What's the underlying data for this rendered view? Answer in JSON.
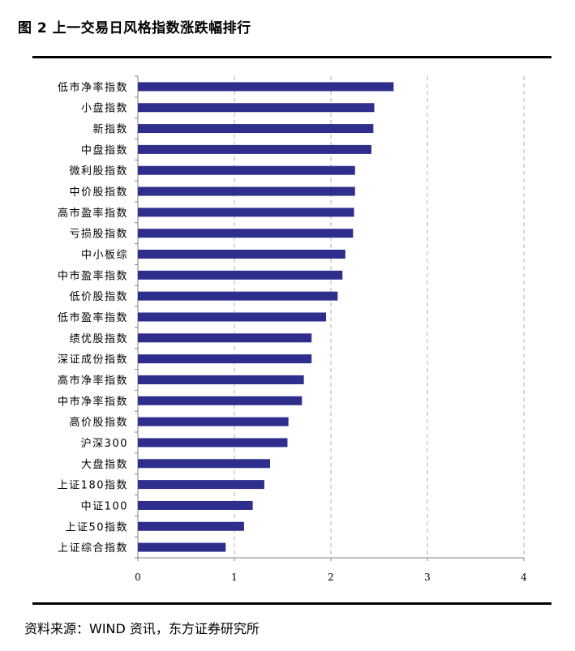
{
  "figure": {
    "title": "图 2 上一交易日风格指数涨跌幅排行",
    "source": "资料来源：WIND 资讯，东方证券研究所"
  },
  "colors": {
    "bar": "#2e2e8c",
    "grid": "#b0b0b0",
    "axis": "#808080"
  },
  "chart_data": {
    "type": "bar",
    "orientation": "horizontal",
    "categories": [
      "低市净率指数",
      "小盘指数",
      "新指数",
      "中盘指数",
      "微利股指数",
      "中价股指数",
      "高市盈率指数",
      "亏损股指数",
      "中小板综",
      "中市盈率指数",
      "低价股指数",
      "低市盈率指数",
      "绩优股指数",
      "深证成份指数",
      "高市净率指数",
      "中市净率指数",
      "高价股指数",
      "沪深300",
      "大盘指数",
      "上证180指数",
      "中证100",
      "上证50指数",
      "上证综合指数"
    ],
    "values": [
      2.65,
      2.45,
      2.44,
      2.42,
      2.25,
      2.25,
      2.24,
      2.23,
      2.15,
      2.12,
      2.07,
      1.95,
      1.8,
      1.8,
      1.72,
      1.7,
      1.56,
      1.55,
      1.37,
      1.31,
      1.19,
      1.1,
      0.91
    ],
    "xlim": [
      0,
      4
    ],
    "xticks": [
      "0",
      "1",
      "2",
      "3",
      "4"
    ],
    "grid": "vertical-dashed",
    "legend": "none",
    "xlabel": "",
    "ylabel": ""
  }
}
